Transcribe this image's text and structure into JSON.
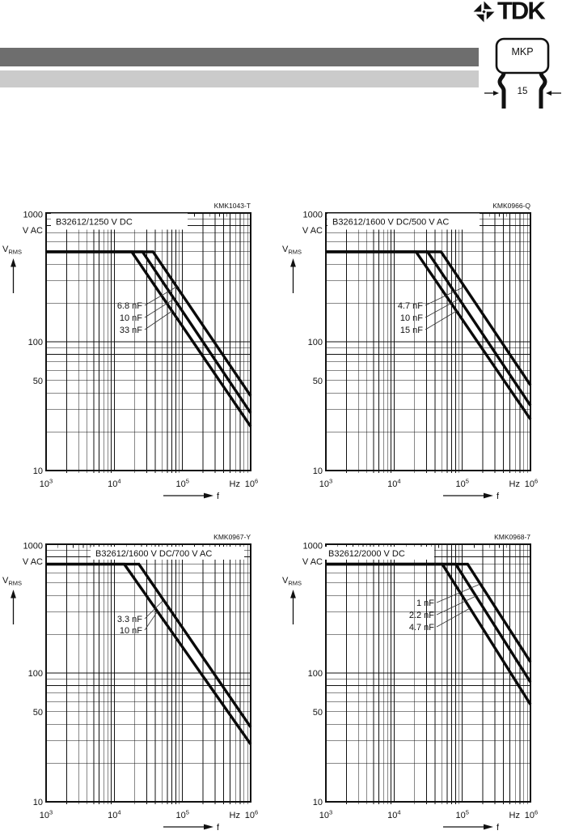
{
  "header": {
    "brand": "TDK",
    "package": {
      "label": "MKP",
      "lead_spacing": "15"
    }
  },
  "chart_data": [
    {
      "type": "line",
      "code": "KMK1043-T",
      "title": "B32612/1250 V DC",
      "x_axis": {
        "scale": "log",
        "unit_label": "Hz",
        "arrow_label": "f",
        "range_hz": [
          1000,
          1000000
        ],
        "tick_labels": [
          "10^3",
          "10^4",
          "10^5",
          "10^6"
        ]
      },
      "y_axis": {
        "scale": "log",
        "unit_label": "V AC",
        "quantity_label": {
          "base": "V",
          "sub": "RMS"
        },
        "range_v": [
          10,
          1000
        ],
        "tick_labels": [
          "1000",
          "100",
          "50",
          "10"
        ]
      },
      "flat_v_rms": 500,
      "series": [
        {
          "name": "6.8 nF",
          "points": [
            [
              1000,
              500
            ],
            [
              37000,
              500
            ],
            [
              1000000,
              38
            ]
          ]
        },
        {
          "name": "10 nF",
          "points": [
            [
              1000,
              500
            ],
            [
              26000,
              500
            ],
            [
              1000000,
              28
            ]
          ]
        },
        {
          "name": "33 nF",
          "points": [
            [
              1000,
              500
            ],
            [
              18000,
              500
            ],
            [
              1000000,
              22
            ]
          ]
        }
      ]
    },
    {
      "type": "line",
      "code": "KMK0966-Q",
      "title": "B32612/1600 V DC/500 V AC",
      "x_axis": {
        "scale": "log",
        "unit_label": "Hz",
        "arrow_label": "f",
        "range_hz": [
          1000,
          1000000
        ],
        "tick_labels": [
          "10^3",
          "10^4",
          "10^5",
          "10^6"
        ]
      },
      "y_axis": {
        "scale": "log",
        "unit_label": "V AC",
        "quantity_label": {
          "base": "V",
          "sub": "RMS"
        },
        "range_v": [
          10,
          1000
        ],
        "tick_labels": [
          "1000",
          "100",
          "50",
          "10"
        ]
      },
      "flat_v_rms": 500,
      "series": [
        {
          "name": "4.7 nF",
          "points": [
            [
              1000,
              500
            ],
            [
              49000,
              500
            ],
            [
              1000000,
              46
            ]
          ]
        },
        {
          "name": "10 nF",
          "points": [
            [
              1000,
              500
            ],
            [
              31000,
              500
            ],
            [
              1000000,
              32
            ]
          ]
        },
        {
          "name": "15 nF",
          "points": [
            [
              1000,
              500
            ],
            [
              21000,
              500
            ],
            [
              1000000,
              25
            ]
          ]
        }
      ]
    },
    {
      "type": "line",
      "code": "KMK0967-Y",
      "title": "B32612/1600 V DC/700 V AC",
      "x_axis": {
        "scale": "log",
        "unit_label": "Hz",
        "arrow_label": "f",
        "range_hz": [
          1000,
          1000000
        ],
        "tick_labels": [
          "10^3",
          "10^4",
          "10^5",
          "10^6"
        ]
      },
      "y_axis": {
        "scale": "log",
        "unit_label": "V AC",
        "quantity_label": {
          "base": "V",
          "sub": "RMS"
        },
        "range_v": [
          10,
          1000
        ],
        "tick_labels": [
          "1000",
          "100",
          "50",
          "10"
        ]
      },
      "flat_v_rms": 700,
      "series": [
        {
          "name": "3.3 nF",
          "points": [
            [
              1000,
              700
            ],
            [
              23000,
              700
            ],
            [
              1000000,
              38
            ]
          ]
        },
        {
          "name": "10 nF",
          "points": [
            [
              1000,
              700
            ],
            [
              14000,
              700
            ],
            [
              1000000,
              28
            ]
          ]
        }
      ]
    },
    {
      "type": "line",
      "code": "KMK0968-7",
      "title": "B32612/2000 V DC",
      "x_axis": {
        "scale": "log",
        "unit_label": "Hz",
        "arrow_label": "f",
        "range_hz": [
          1000,
          1000000
        ],
        "tick_labels": [
          "10^3",
          "10^4",
          "10^5",
          "10^6"
        ]
      },
      "y_axis": {
        "scale": "log",
        "unit_label": "V AC",
        "quantity_label": {
          "base": "V",
          "sub": "RMS"
        },
        "range_v": [
          10,
          1000
        ],
        "tick_labels": [
          "1000",
          "100",
          "50",
          "10"
        ]
      },
      "flat_v_rms": 700,
      "series": [
        {
          "name": "1 nF",
          "points": [
            [
              1000,
              700
            ],
            [
              120000,
              700
            ],
            [
              1000000,
              122
            ]
          ]
        },
        {
          "name": "2.2 nF",
          "points": [
            [
              1000,
              700
            ],
            [
              80000,
              700
            ],
            [
              1000000,
              85
            ]
          ]
        },
        {
          "name": "4.7 nF",
          "points": [
            [
              1000,
              700
            ],
            [
              51000,
              700
            ],
            [
              1000000,
              57
            ]
          ]
        }
      ]
    }
  ]
}
